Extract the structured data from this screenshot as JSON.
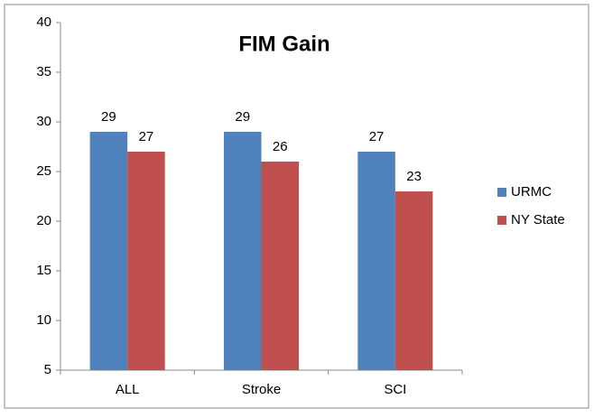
{
  "chart_data": {
    "type": "bar",
    "title": "FIM Gain",
    "categories": [
      "ALL",
      "Stroke",
      "SCI"
    ],
    "series": [
      {
        "name": "URMC",
        "color": "#4f81bd",
        "values": [
          29,
          29,
          27
        ]
      },
      {
        "name": "NY State",
        "color": "#c0504d",
        "values": [
          27,
          26,
          23
        ]
      }
    ],
    "ylim": [
      5,
      40
    ],
    "yticks": [
      5,
      10,
      15,
      20,
      25,
      30,
      35,
      40
    ],
    "grid": false,
    "legend": "right"
  }
}
